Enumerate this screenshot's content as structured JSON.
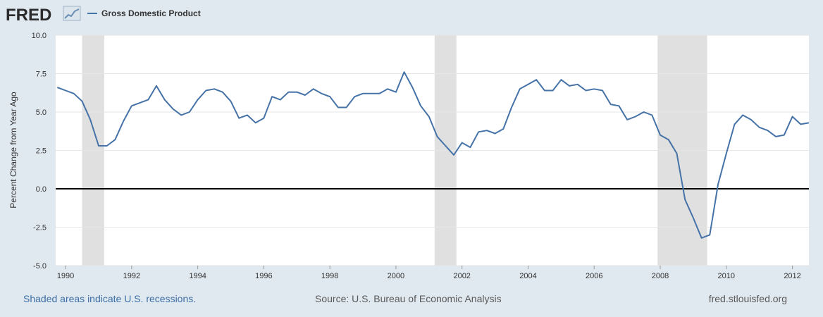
{
  "brand": {
    "name": "FRED",
    "logo_icon": "fred-chart-logo-icon"
  },
  "colors": {
    "series": "#4572a7",
    "recession": "#e0e0e0",
    "zero_line": "#000000",
    "background": "#e1e9f0",
    "plot_bg": "#ffffff"
  },
  "footer": {
    "recession_note": "Shaded areas indicate U.S. recessions.",
    "source": "Source: U.S. Bureau of Economic Analysis",
    "site": "fred.stlouisfed.org"
  },
  "chart_data": {
    "type": "line",
    "title": "",
    "xlabel": "",
    "ylabel": "Percent Change from Year Ago",
    "xlim": [
      1989.7,
      2012.5
    ],
    "ylim": [
      -5.0,
      10.0
    ],
    "yticks": [
      -5.0,
      -2.5,
      0.0,
      2.5,
      5.0,
      7.5,
      10.0
    ],
    "ytick_labels": [
      "-5.0",
      "-2.5",
      "0.0",
      "2.5",
      "5.0",
      "7.5",
      "10.0"
    ],
    "xticks": [
      1990,
      1992,
      1994,
      1996,
      1998,
      2000,
      2002,
      2004,
      2006,
      2008,
      2010,
      2012
    ],
    "xtick_labels": [
      "1990",
      "1992",
      "1994",
      "1996",
      "1998",
      "2000",
      "2002",
      "2004",
      "2006",
      "2008",
      "2010",
      "2012"
    ],
    "grid": {
      "horizontal": true,
      "vertical": false
    },
    "legend": "top-left",
    "recessions": [
      [
        1990.5,
        1991.17
      ],
      [
        2001.17,
        2001.83
      ],
      [
        2007.92,
        2009.42
      ]
    ],
    "series": [
      {
        "name": "Gross Domestic Product",
        "x": [
          1989.75,
          1990.0,
          1990.25,
          1990.5,
          1990.75,
          1991.0,
          1991.25,
          1991.5,
          1991.75,
          1992.0,
          1992.25,
          1992.5,
          1992.75,
          1993.0,
          1993.25,
          1993.5,
          1993.75,
          1994.0,
          1994.25,
          1994.5,
          1994.75,
          1995.0,
          1995.25,
          1995.5,
          1995.75,
          1996.0,
          1996.25,
          1996.5,
          1996.75,
          1997.0,
          1997.25,
          1997.5,
          1997.75,
          1998.0,
          1998.25,
          1998.5,
          1998.75,
          1999.0,
          1999.25,
          1999.5,
          1999.75,
          2000.0,
          2000.25,
          2000.5,
          2000.75,
          2001.0,
          2001.25,
          2001.5,
          2001.75,
          2002.0,
          2002.25,
          2002.5,
          2002.75,
          2003.0,
          2003.25,
          2003.5,
          2003.75,
          2004.0,
          2004.25,
          2004.5,
          2004.75,
          2005.0,
          2005.25,
          2005.5,
          2005.75,
          2006.0,
          2006.25,
          2006.5,
          2006.75,
          2007.0,
          2007.25,
          2007.5,
          2007.75,
          2008.0,
          2008.25,
          2008.5,
          2008.75,
          2009.0,
          2009.25,
          2009.5,
          2009.75,
          2010.0,
          2010.25,
          2010.5,
          2010.75,
          2011.0,
          2011.25,
          2011.5,
          2011.75,
          2012.0,
          2012.25,
          2012.5
        ],
        "values": [
          6.6,
          6.4,
          6.2,
          5.7,
          4.5,
          2.8,
          2.8,
          3.2,
          4.4,
          5.4,
          5.6,
          5.8,
          6.7,
          5.8,
          5.2,
          4.8,
          5.0,
          5.8,
          6.4,
          6.5,
          6.3,
          5.7,
          4.6,
          4.8,
          4.3,
          4.6,
          6.0,
          5.8,
          6.3,
          6.3,
          6.1,
          6.5,
          6.2,
          6.0,
          5.3,
          5.3,
          6.0,
          6.2,
          6.2,
          6.2,
          6.5,
          6.3,
          7.6,
          6.6,
          5.4,
          4.7,
          3.4,
          2.8,
          2.2,
          3.0,
          2.7,
          3.7,
          3.8,
          3.6,
          3.9,
          5.3,
          6.5,
          6.8,
          7.1,
          6.4,
          6.4,
          7.1,
          6.7,
          6.8,
          6.4,
          6.5,
          6.4,
          5.5,
          5.4,
          4.5,
          4.7,
          5.0,
          4.8,
          3.5,
          3.2,
          2.3,
          -0.7,
          -1.9,
          -3.2,
          -3.0,
          0.3,
          2.3,
          4.2,
          4.8,
          4.5,
          4.0,
          3.8,
          3.4,
          3.5,
          4.7,
          4.2,
          4.3
        ]
      }
    ]
  }
}
